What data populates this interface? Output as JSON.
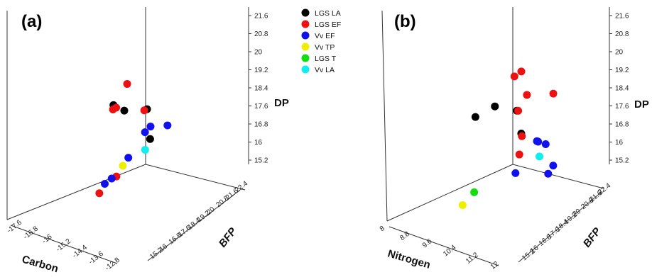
{
  "legend": [
    {
      "name": "LGS LA",
      "color": "#000000"
    },
    {
      "name": "LGS EF",
      "color": "#ee1111"
    },
    {
      "name": "Vv EF",
      "color": "#1111ee"
    },
    {
      "name": "Vv TP",
      "color": "#eeee00"
    },
    {
      "name": "LGS T",
      "color": "#11dd11"
    },
    {
      "name": "Vv LA",
      "color": "#11eeee"
    }
  ],
  "chart_data": [
    {
      "type": "scatter",
      "panel_label": "(a)",
      "xlabel": "Carbon",
      "ylabel": "BFP",
      "zlabel": "DP",
      "x_ticks": [
        "-17.6",
        "-16.8",
        "-16",
        "-15.2",
        "-14.4",
        "-13.6",
        "-12.8"
      ],
      "y_ticks": [
        "15.2",
        "16",
        "16.8",
        "17.6",
        "18.4",
        "19.2",
        "20",
        "20.8",
        "21.6",
        "22.4"
      ],
      "z_ticks": [
        "15.2",
        "16",
        "16.8",
        "17.6",
        "18.4",
        "19.2",
        "20",
        "20.8",
        "21.6"
      ],
      "xlim": [
        -17.6,
        -12.8
      ],
      "ylim": [
        15.2,
        22.4
      ],
      "zlim": [
        15.2,
        21.6
      ],
      "series": [
        {
          "name": "LGS LA",
          "color": "#000000",
          "points": [
            {
              "x": -14.0,
              "y": 20.2,
              "z": 20.2
            },
            {
              "x": -15.0,
              "y": 20.6,
              "z": 19.6
            },
            {
              "x": -13.6,
              "y": 21.8,
              "z": 20.4
            },
            {
              "x": -15.6,
              "y": 19.6,
              "z": 17.9
            }
          ]
        },
        {
          "name": "LGS EF",
          "color": "#ee1111",
          "points": [
            {
              "x": -13.8,
              "y": 21.6,
              "z": 21.4
            },
            {
              "x": -13.0,
              "y": 22.2,
              "z": 20.8
            },
            {
              "x": -13.9,
              "y": 20.6,
              "z": 20.2
            },
            {
              "x": -14.9,
              "y": 20.6,
              "z": 19.6
            },
            {
              "x": -13.4,
              "y": 20.4,
              "z": 16.8
            },
            {
              "x": -14.4,
              "y": 19.6,
              "z": 16.9
            }
          ]
        },
        {
          "name": "Vv EF",
          "color": "#1111ee",
          "points": [
            {
              "x": -16.4,
              "y": 18.0,
              "z": 17.8
            },
            {
              "x": -16.4,
              "y": 17.6,
              "z": 17.5
            },
            {
              "x": -17.2,
              "y": 17.6,
              "z": 17.4
            },
            {
              "x": -16.2,
              "y": 16.8,
              "z": 16.4
            },
            {
              "x": -16.0,
              "y": 16.0,
              "z": 15.5
            },
            {
              "x": -16.0,
              "y": 15.5,
              "z": 15.2
            }
          ]
        },
        {
          "name": "Vv TP",
          "color": "#eeee00",
          "points": [
            {
              "x": -16.2,
              "y": 16.4,
              "z": 16.0
            }
          ]
        },
        {
          "name": "Vv LA",
          "color": "#11eeee",
          "points": [
            {
              "x": -16.6,
              "y": 17.2,
              "z": 16.6
            }
          ]
        }
      ]
    },
    {
      "type": "scatter",
      "panel_label": "(b)",
      "xlabel": "Nitrogen",
      "ylabel": "BFP",
      "zlabel": "DP",
      "x_ticks": [
        "8",
        "8.8",
        "9.6",
        "10.4",
        "11.2",
        "12"
      ],
      "y_ticks": [
        "15.2",
        "16",
        "16.8",
        "17.6",
        "18.4",
        "19.2",
        "20",
        "20.8",
        "21.6",
        "22.4"
      ],
      "z_ticks": [
        "15.2",
        "16",
        "16.8",
        "17.6",
        "18.4",
        "19.2",
        "20",
        "20.8",
        "21.6"
      ],
      "xlim": [
        8,
        12
      ],
      "ylim": [
        15.2,
        22.4
      ],
      "zlim": [
        15.2,
        21.6
      ],
      "series": [
        {
          "name": "LGS LA",
          "color": "#000000",
          "points": [
            {
              "x": 11.6,
              "y": 21.2,
              "z": 20.2
            },
            {
              "x": 10.9,
              "y": 21.0,
              "z": 20.2
            },
            {
              "x": 10.2,
              "y": 21.0,
              "z": 19.6
            },
            {
              "x": 9.9,
              "y": 20.6,
              "z": 18.4
            }
          ]
        },
        {
          "name": "LGS EF",
          "color": "#ee1111",
          "points": [
            {
              "x": 10.3,
              "y": 21.6,
              "z": 21.4
            },
            {
              "x": 10.6,
              "y": 21.8,
              "z": 21.4
            },
            {
              "x": 9.8,
              "y": 20.8,
              "z": 20.0
            },
            {
              "x": 8.8,
              "y": 20.4,
              "z": 19.4
            },
            {
              "x": 10.4,
              "y": 21.6,
              "z": 19.8
            },
            {
              "x": 9.8,
              "y": 20.4,
              "z": 18.2
            },
            {
              "x": 9.8,
              "y": 20.2,
              "z": 17.4
            }
          ]
        },
        {
          "name": "Vv EF",
          "color": "#1111ee",
          "points": [
            {
              "x": 9.0,
              "y": 19.6,
              "z": 17.4
            },
            {
              "x": 8.8,
              "y": 19.2,
              "z": 17.2
            },
            {
              "x": 8.4,
              "y": 18.8,
              "z": 16.8
            },
            {
              "x": 9.2,
              "y": 18.4,
              "z": 16.0
            },
            {
              "x": 8.0,
              "y": 18.4,
              "z": 15.6
            },
            {
              "x": 8.0,
              "y": 18.0,
              "z": 15.2
            }
          ]
        },
        {
          "name": "Vv TP",
          "color": "#eeee00",
          "points": [
            {
              "x": 10.4,
              "y": 17.2,
              "z": 15.2
            }
          ]
        },
        {
          "name": "LGS T",
          "color": "#11dd11",
          "points": [
            {
              "x": 11.8,
              "y": 21.6,
              "z": 17.2
            }
          ]
        },
        {
          "name": "Vv LA",
          "color": "#11eeee",
          "points": [
            {
              "x": 8.6,
              "y": 18.8,
              "z": 16.4
            }
          ]
        }
      ]
    }
  ]
}
